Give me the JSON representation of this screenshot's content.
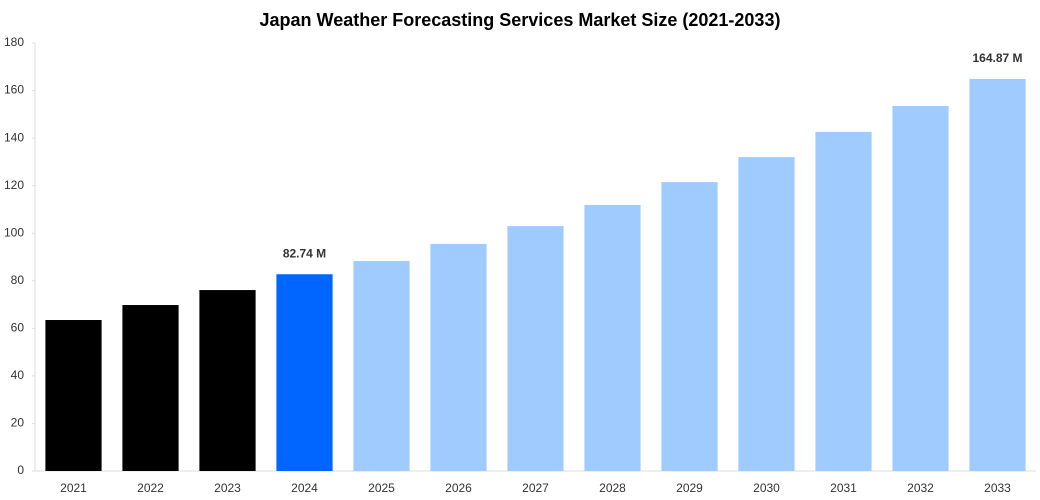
{
  "chart_data": {
    "type": "bar",
    "title": "Japan Weather Forecasting Services Market Size (2021-2033)",
    "categories": [
      "2021",
      "2022",
      "2023",
      "2024",
      "2025",
      "2026",
      "2027",
      "2028",
      "2029",
      "2030",
      "2031",
      "2032",
      "2033"
    ],
    "values": [
      63.5,
      69.8,
      76.1,
      82.74,
      88.3,
      95.5,
      103.0,
      111.9,
      121.5,
      132.0,
      142.6,
      153.5,
      164.87
    ],
    "value_labels": [
      null,
      null,
      null,
      "82.74 M",
      null,
      null,
      null,
      null,
      null,
      null,
      null,
      null,
      "164.87 M"
    ],
    "colors": [
      "#000000",
      "#000000",
      "#000000",
      "#0066ff",
      "#a0cbff",
      "#a0cbff",
      "#a0cbff",
      "#a0cbff",
      "#a0cbff",
      "#a0cbff",
      "#a0cbff",
      "#a0cbff",
      "#a0cbff"
    ],
    "ylim": [
      0,
      180
    ],
    "yticks": [
      0,
      20,
      40,
      60,
      80,
      100,
      120,
      140,
      160,
      180
    ],
    "grid": false
  }
}
